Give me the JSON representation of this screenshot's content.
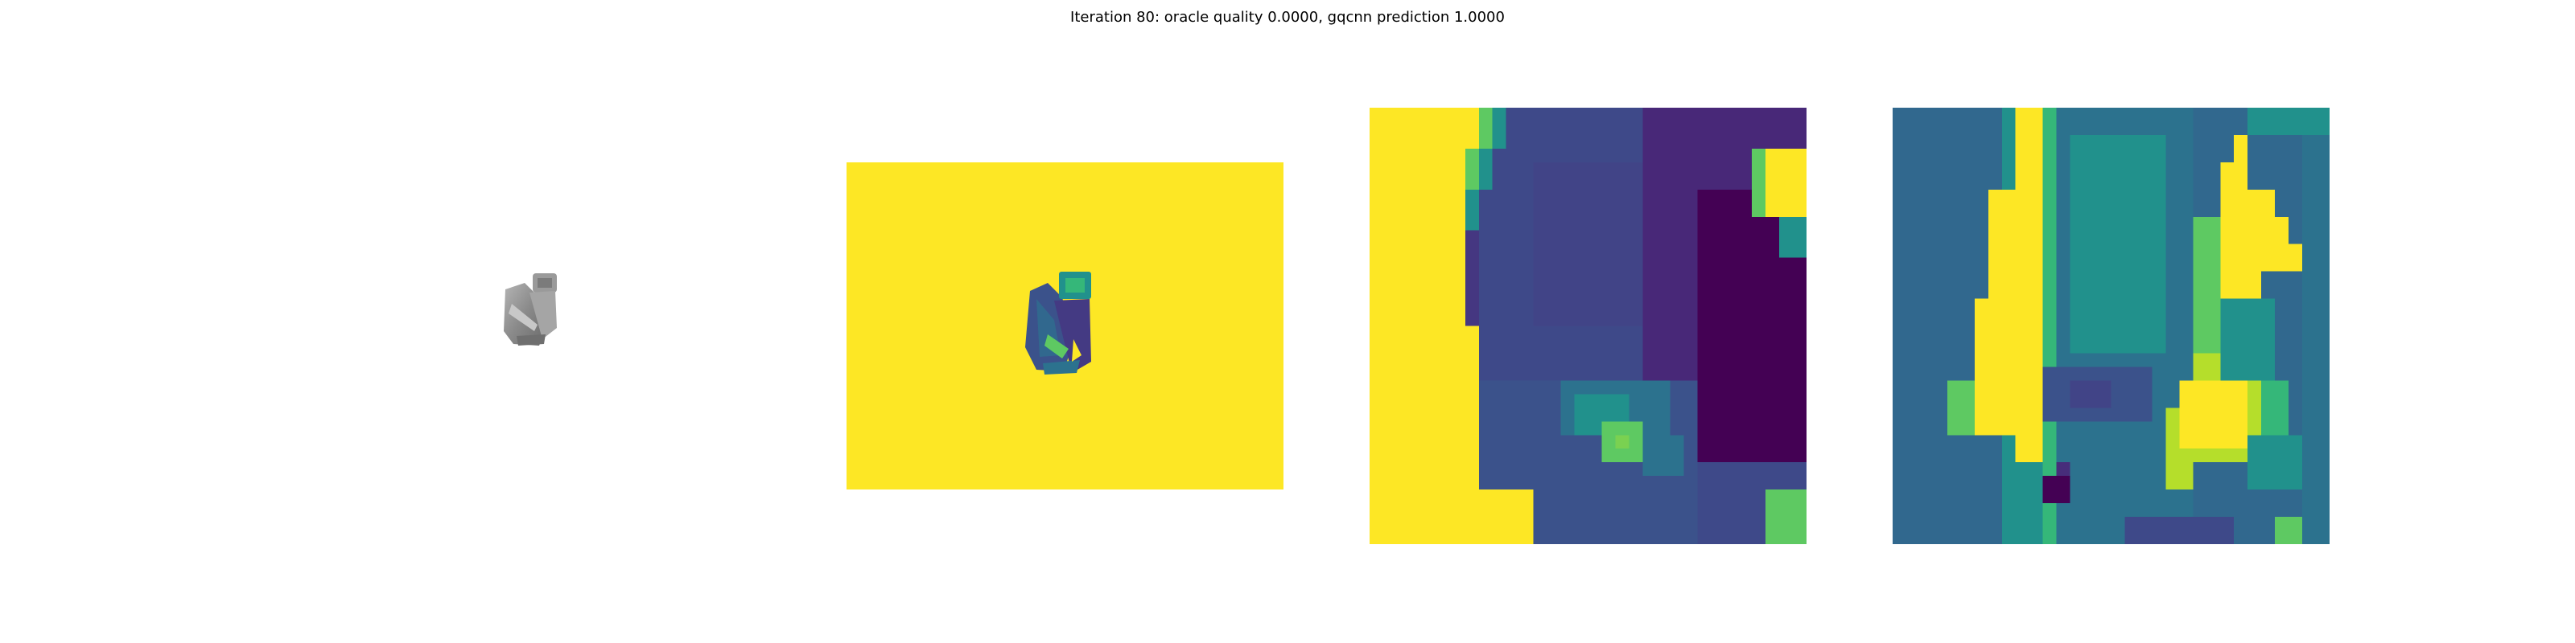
{
  "title": "Iteration 80: oracle quality 0.0000, gqcnn prediction 1.0000",
  "panels": [
    {
      "name": "rendered-object-image",
      "colormap": "gray"
    },
    {
      "name": "depth-image",
      "colormap": "viridis"
    },
    {
      "name": "depth-crop-image",
      "colormap": "viridis"
    },
    {
      "name": "second-crop-image",
      "colormap": "viridis"
    }
  ],
  "colors": {
    "viridis_yellow": "#fde725",
    "viridis_teal": "#21918c",
    "viridis_blue": "#3b528b",
    "viridis_purple": "#440154",
    "viridis_green": "#5ec962",
    "object_gray": "#8a8a8a"
  }
}
